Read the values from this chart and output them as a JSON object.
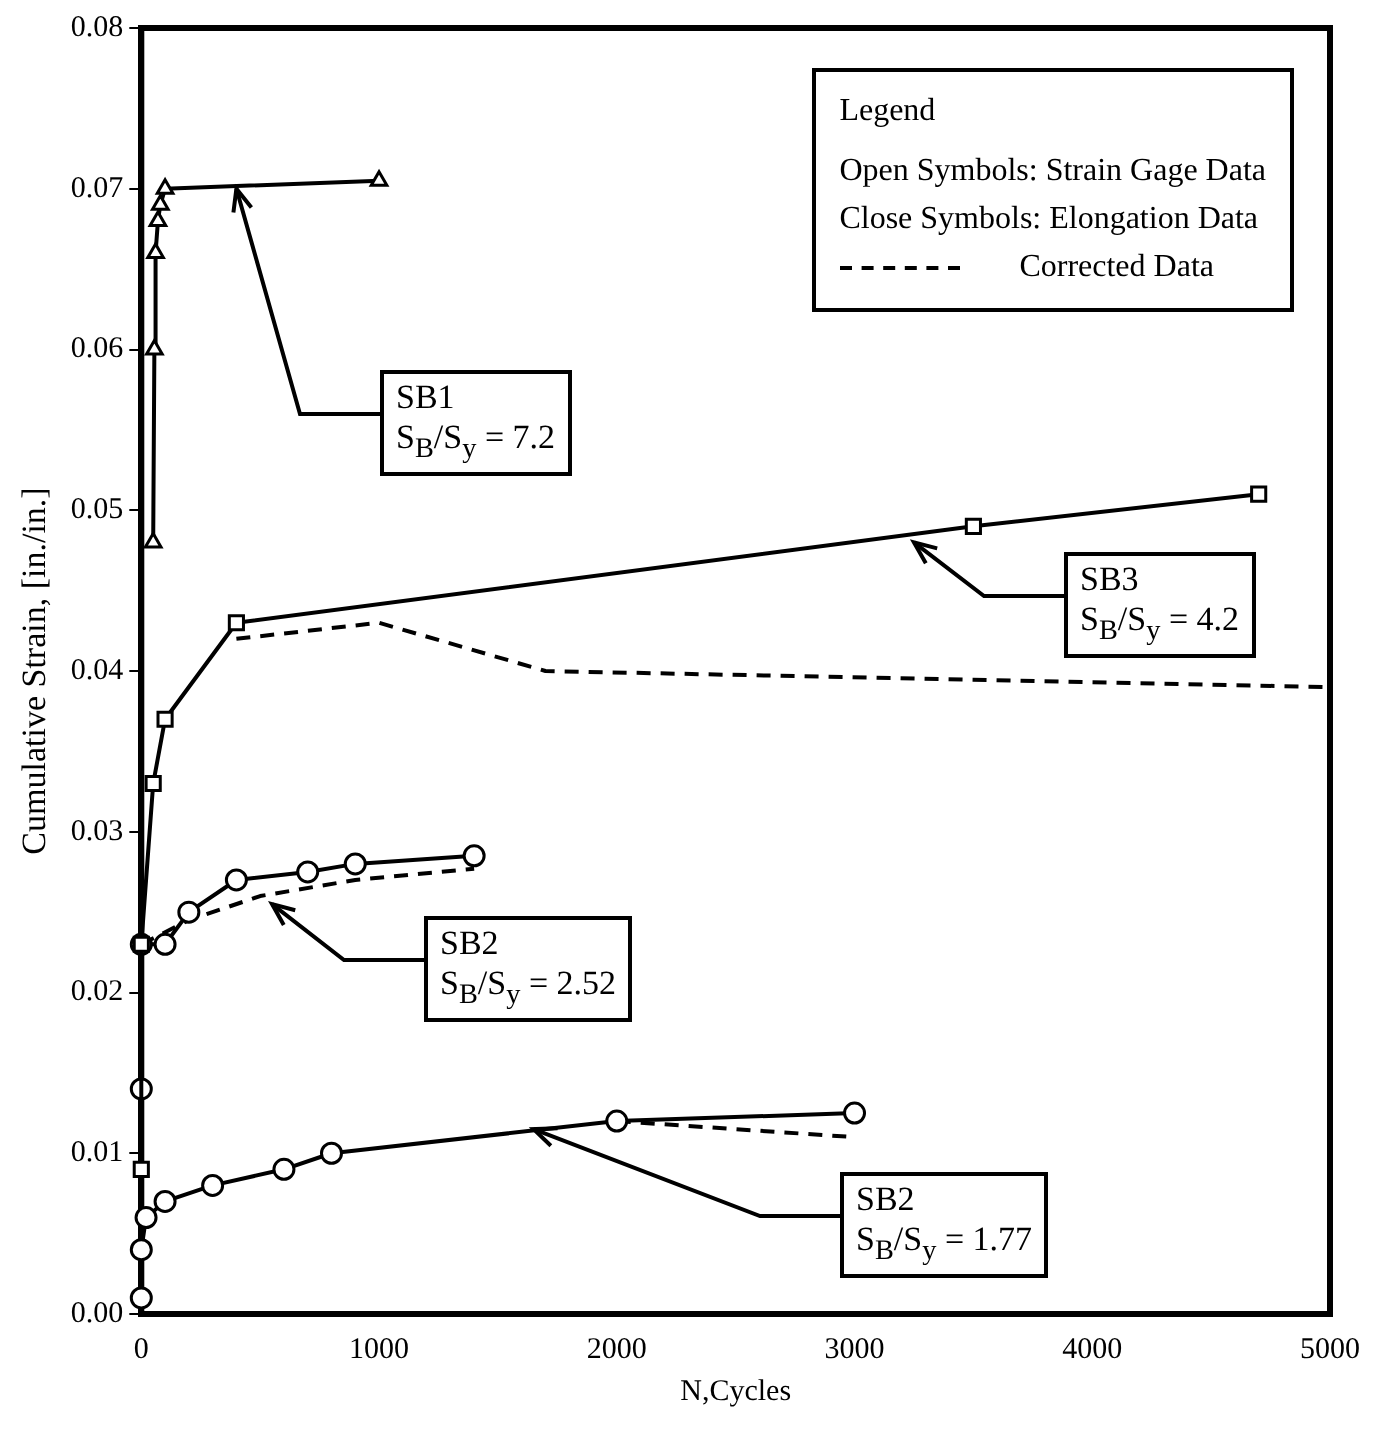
{
  "chart_data": {
    "type": "line",
    "xlabel": "N,Cycles",
    "ylabel": "Cumulative Strain, [in./in.]",
    "legend_title": "Legend",
    "xlim": [
      0,
      5000
    ],
    "xticks": [
      0,
      1000,
      2000,
      3000,
      4000,
      5000
    ],
    "ylim": [
      0,
      0.08
    ],
    "yticks": [
      {
        "value": 0,
        "label": "0.00"
      },
      {
        "value": 0.01,
        "label": "0.01"
      },
      {
        "value": 0.02,
        "label": "0.02"
      },
      {
        "value": 0.03,
        "label": "0.03"
      },
      {
        "value": 0.04,
        "label": "0.04"
      },
      {
        "value": 0.05,
        "label": "0.05"
      },
      {
        "value": 0.06,
        "label": "0.06"
      },
      {
        "value": 0.07,
        "label": "0.07"
      },
      {
        "value": 0.08,
        "label": "0.08"
      }
    ],
    "grid": false,
    "legend": "top right",
    "line_style": "solid",
    "series": [
      {
        "color": "#000000",
        "marker": "triangle",
        "x": [
          50,
          55,
          60,
          70,
          80,
          100,
          1000
        ],
        "values": [
          0.048,
          0.06,
          0.066,
          0.068,
          0.069,
          0.07,
          0.0705
        ]
      },
      {
        "color": "#000000",
        "marker": "square",
        "x": [
          0,
          0,
          50,
          100,
          400,
          3500,
          4700
        ],
        "values": [
          0.009,
          0.023,
          0.033,
          0.037,
          0.043,
          0.049,
          0.051
        ]
      },
      {
        "color": "#000000",
        "marker": "none",
        "line_style": "dashed",
        "name": "Corrected Data",
        "x": [
          400,
          1000,
          1700,
          5000
        ],
        "values": [
          0.042,
          0.043,
          0.04,
          0.039
        ]
      },
      {
        "color": "#000000",
        "marker": "circle",
        "x": [
          0,
          0,
          100,
          200,
          400,
          700,
          900,
          1400
        ],
        "values": [
          0.014,
          0.023,
          0.023,
          0.025,
          0.027,
          0.0275,
          0.028,
          0.0285
        ]
      },
      {
        "color": "#000000",
        "marker": "none",
        "line_style": "dashed",
        "x": [
          0,
          200,
          500,
          900,
          1400
        ],
        "values": [
          0.023,
          0.0245,
          0.026,
          0.027,
          0.0277
        ]
      },
      {
        "color": "#000000",
        "marker": "circle",
        "x": [
          0,
          0,
          20,
          100,
          300,
          600,
          800,
          2000,
          3000
        ],
        "values": [
          0.001,
          0.004,
          0.006,
          0.007,
          0.008,
          0.009,
          0.01,
          0.012,
          0.0125
        ]
      },
      {
        "color": "#000000",
        "marker": "none",
        "line_style": "dashed",
        "x": [
          2000,
          3000
        ],
        "values": [
          0.012,
          0.011
        ]
      }
    ],
    "annotations": [
      "Open Symbols: Strain Gage Data",
      "Close Symbols: Elongation Data",
      {
        "text": "SB1\nS$_{B}$/S$_{y}$ = 7.2",
        "x": 400,
        "y": 0.07
      },
      {
        "text": "SB3\nS$_{B}$/S$_{y}$ = 4.2",
        "x": 3250,
        "y": 0.048
      },
      {
        "text": "SB2\nS$_{B}$/S$_{y}$ = 2.52",
        "x": 550,
        "y": 0.0255
      },
      {
        "text": "SB2\nS$_{B}$/S$_{y}$ = 1.77",
        "x": 1650,
        "y": 0.0115
      }
    ]
  }
}
